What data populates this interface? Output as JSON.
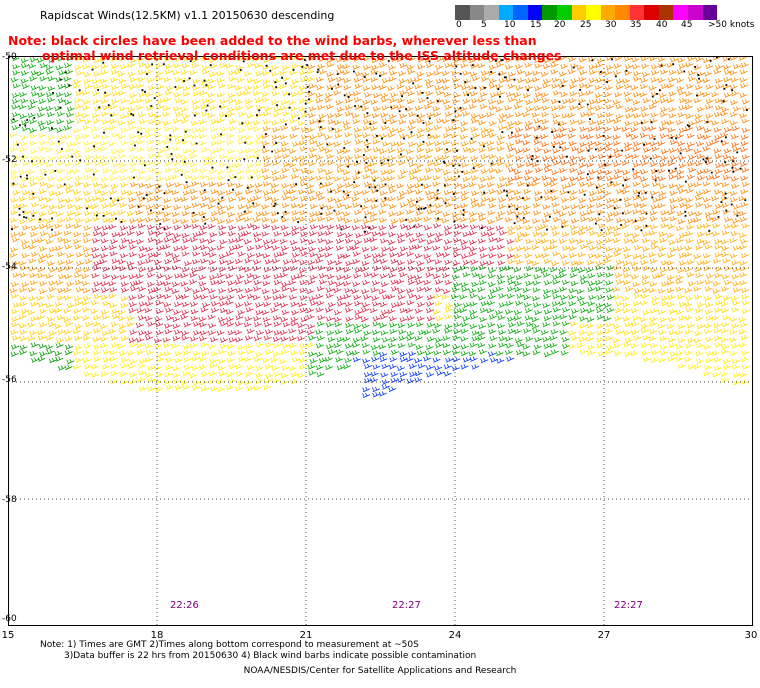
{
  "title": "Rapidscat Winds(12.5KM) v1.1 20150630 descending",
  "colorbar": {
    "colors": [
      "#555555",
      "#888888",
      "#aaaaaa",
      "#00aaff",
      "#0066ff",
      "#0000ff",
      "#009900",
      "#00cc00",
      "#ffcc00",
      "#ffff00",
      "#ffaa00",
      "#ff8800",
      "#ff3333",
      "#dd0000",
      "#aa3300",
      "#ff00ff",
      "#cc00cc",
      "#660099"
    ],
    "labels": [
      "0",
      "5",
      "10",
      "15",
      "20",
      "25",
      "30",
      "35",
      "40",
      "45",
      ">50 knots"
    ]
  },
  "note": {
    "line1": "Note: black circles have been added to the wind barbs, wherever less than",
    "line2": "optimal wind retrieval conditions are met due to the ISS altitude changes"
  },
  "map": {
    "lat_labels": [
      "-50",
      "-52",
      "-54",
      "-56",
      "-58",
      "-60"
    ],
    "lon_labels": [
      "15",
      "18",
      "21",
      "24",
      "27",
      "30"
    ],
    "time_labels": [
      "22:26",
      "22:27",
      "22:27"
    ]
  },
  "footer": {
    "line1": "Note: 1) Times are GMT 2)Times along bottom correspond to measurement at ~50S",
    "line2": "3)Data buffer is 22 hrs from 20150630 4) Black wind barbs indicate possible contamination",
    "credit": "NOAA/NESDIS/Center for Satellite Applications and Research"
  }
}
